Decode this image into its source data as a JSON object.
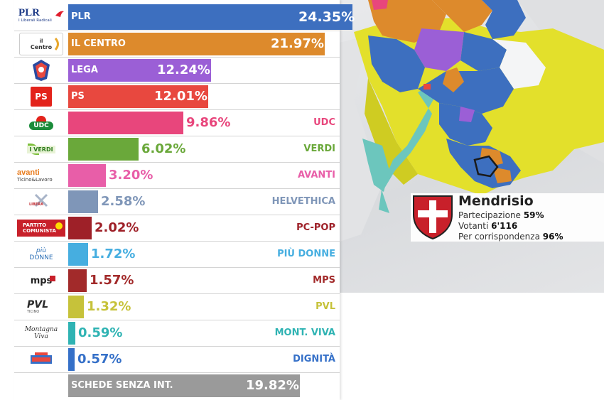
{
  "chart_data": {
    "type": "bar",
    "orientation": "horizontal",
    "unit": "%",
    "xlim": [
      0,
      24.35
    ],
    "categories": [
      "PLR",
      "IL CENTRO",
      "LEGA",
      "PS",
      "UDC",
      "VERDI",
      "AVANTI",
      "HELVETHICA",
      "PC-POP",
      "PIÙ DONNE",
      "MPS",
      "PVL",
      "MONT. VIVA",
      "DIGNITÀ",
      "SCHEDE SENZA INT."
    ],
    "values": [
      24.35,
      21.97,
      12.24,
      12.01,
      9.86,
      6.02,
      3.2,
      2.58,
      2.02,
      1.72,
      1.57,
      1.32,
      0.59,
      0.57,
      19.82
    ],
    "value_labels": [
      "24.35%",
      "21.97%",
      "12.24%",
      "12.01%",
      "9.86%",
      "6.02%",
      "3.20%",
      "2.58%",
      "2.02%",
      "1.72%",
      "1.57%",
      "1.32%",
      "0.59%",
      "0.57%",
      "19.82%"
    ],
    "colors": [
      "#3d6fbf",
      "#dd8a2c",
      "#9b5fd6",
      "#e8483f",
      "#e8467c",
      "#6aa83a",
      "#e85ea8",
      "#7f96b8",
      "#9e2028",
      "#46aee0",
      "#a22a2a",
      "#c6c23a",
      "#2fb3b3",
      "#3570c8",
      "#9a9a9a"
    ]
  },
  "logos": {
    "plr_line1": "PLR",
    "plr_line2": "I Liberali Radicali",
    "centro_il": "il",
    "centro_name": "Centro",
    "ps": "PS",
    "udc": "UDC",
    "verdi": "I VERDI",
    "avanti_top": "avanti",
    "avanti_bottom": "Ticino&Lavoro",
    "helvethica": "LIBERA",
    "pc_line1": "PARTITO",
    "pc_line2": "COMUNISTA",
    "piudonne_line1": "più",
    "piudonne_line2": "DONNE",
    "mps": "mps",
    "pvl": "PVL",
    "pvl_sub": "TICINO",
    "montviva_line1": "Montagna",
    "montviva_line2": "Viva"
  },
  "municipality": {
    "name": "Mendrisio",
    "participation_label": "Partecipazione",
    "participation_value": "59%",
    "voters_label": "Votanti",
    "voters_value": "6'116",
    "postal_label": "Per corrispondenza",
    "postal_value": "96%"
  },
  "map_colors": {
    "plr": "#3d6fbf",
    "centro": "#dd8a2c",
    "lega": "#9b5fd6",
    "ps": "#e8483f",
    "udc": "#e8467c",
    "highlight": "#e3e02b",
    "teal": "#6cc6bd",
    "white": "#f4f5f6"
  }
}
